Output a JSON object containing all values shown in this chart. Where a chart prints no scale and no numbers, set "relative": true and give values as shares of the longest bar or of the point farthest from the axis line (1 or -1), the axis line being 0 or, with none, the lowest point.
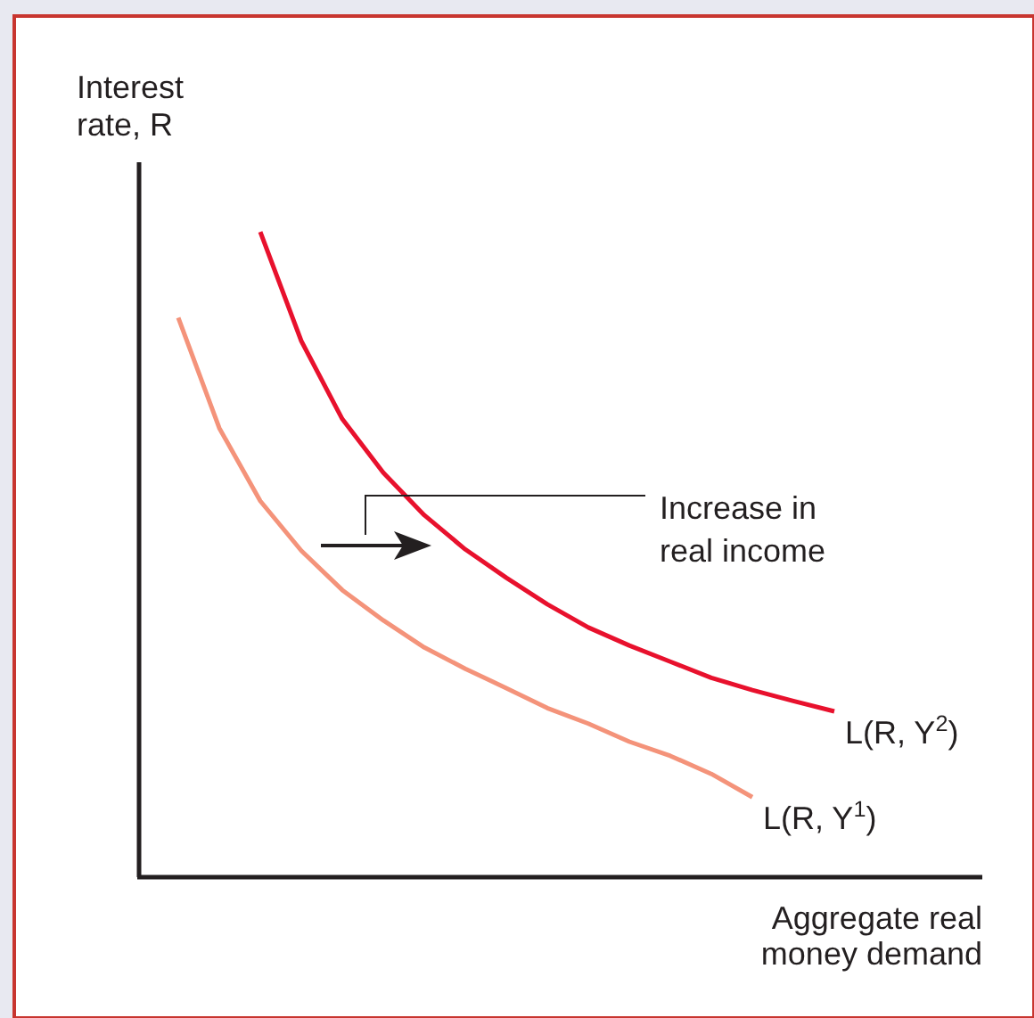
{
  "chart_data": {
    "type": "line",
    "relative": true,
    "ylabel": "Interest rate, R",
    "xlabel": "Aggregate real money demand",
    "annotations": [
      "Increase in real income"
    ],
    "categories": [
      null,
      null,
      null,
      null,
      null,
      null,
      null,
      null,
      null,
      null,
      null,
      null,
      null,
      null,
      null,
      null,
      null
    ],
    "series": [
      {
        "name": "L(R, Y$^{2}$)",
        "color": "#e8112d",
        "values": [
          null,
          null,
          1.0,
          0.831,
          0.71,
          0.627,
          0.561,
          0.508,
          0.464,
          0.423,
          0.387,
          0.359,
          0.334,
          0.309,
          0.29,
          0.273,
          0.257
        ]
      },
      {
        "name": "L(R, Y$^{1}$)",
        "color": "#f4937a",
        "values": [
          0.867,
          0.696,
          0.583,
          0.506,
          0.445,
          0.398,
          0.356,
          0.323,
          0.293,
          0.262,
          0.238,
          0.21,
          0.188,
          0.16,
          0.124,
          null,
          null
        ]
      }
    ]
  }
}
